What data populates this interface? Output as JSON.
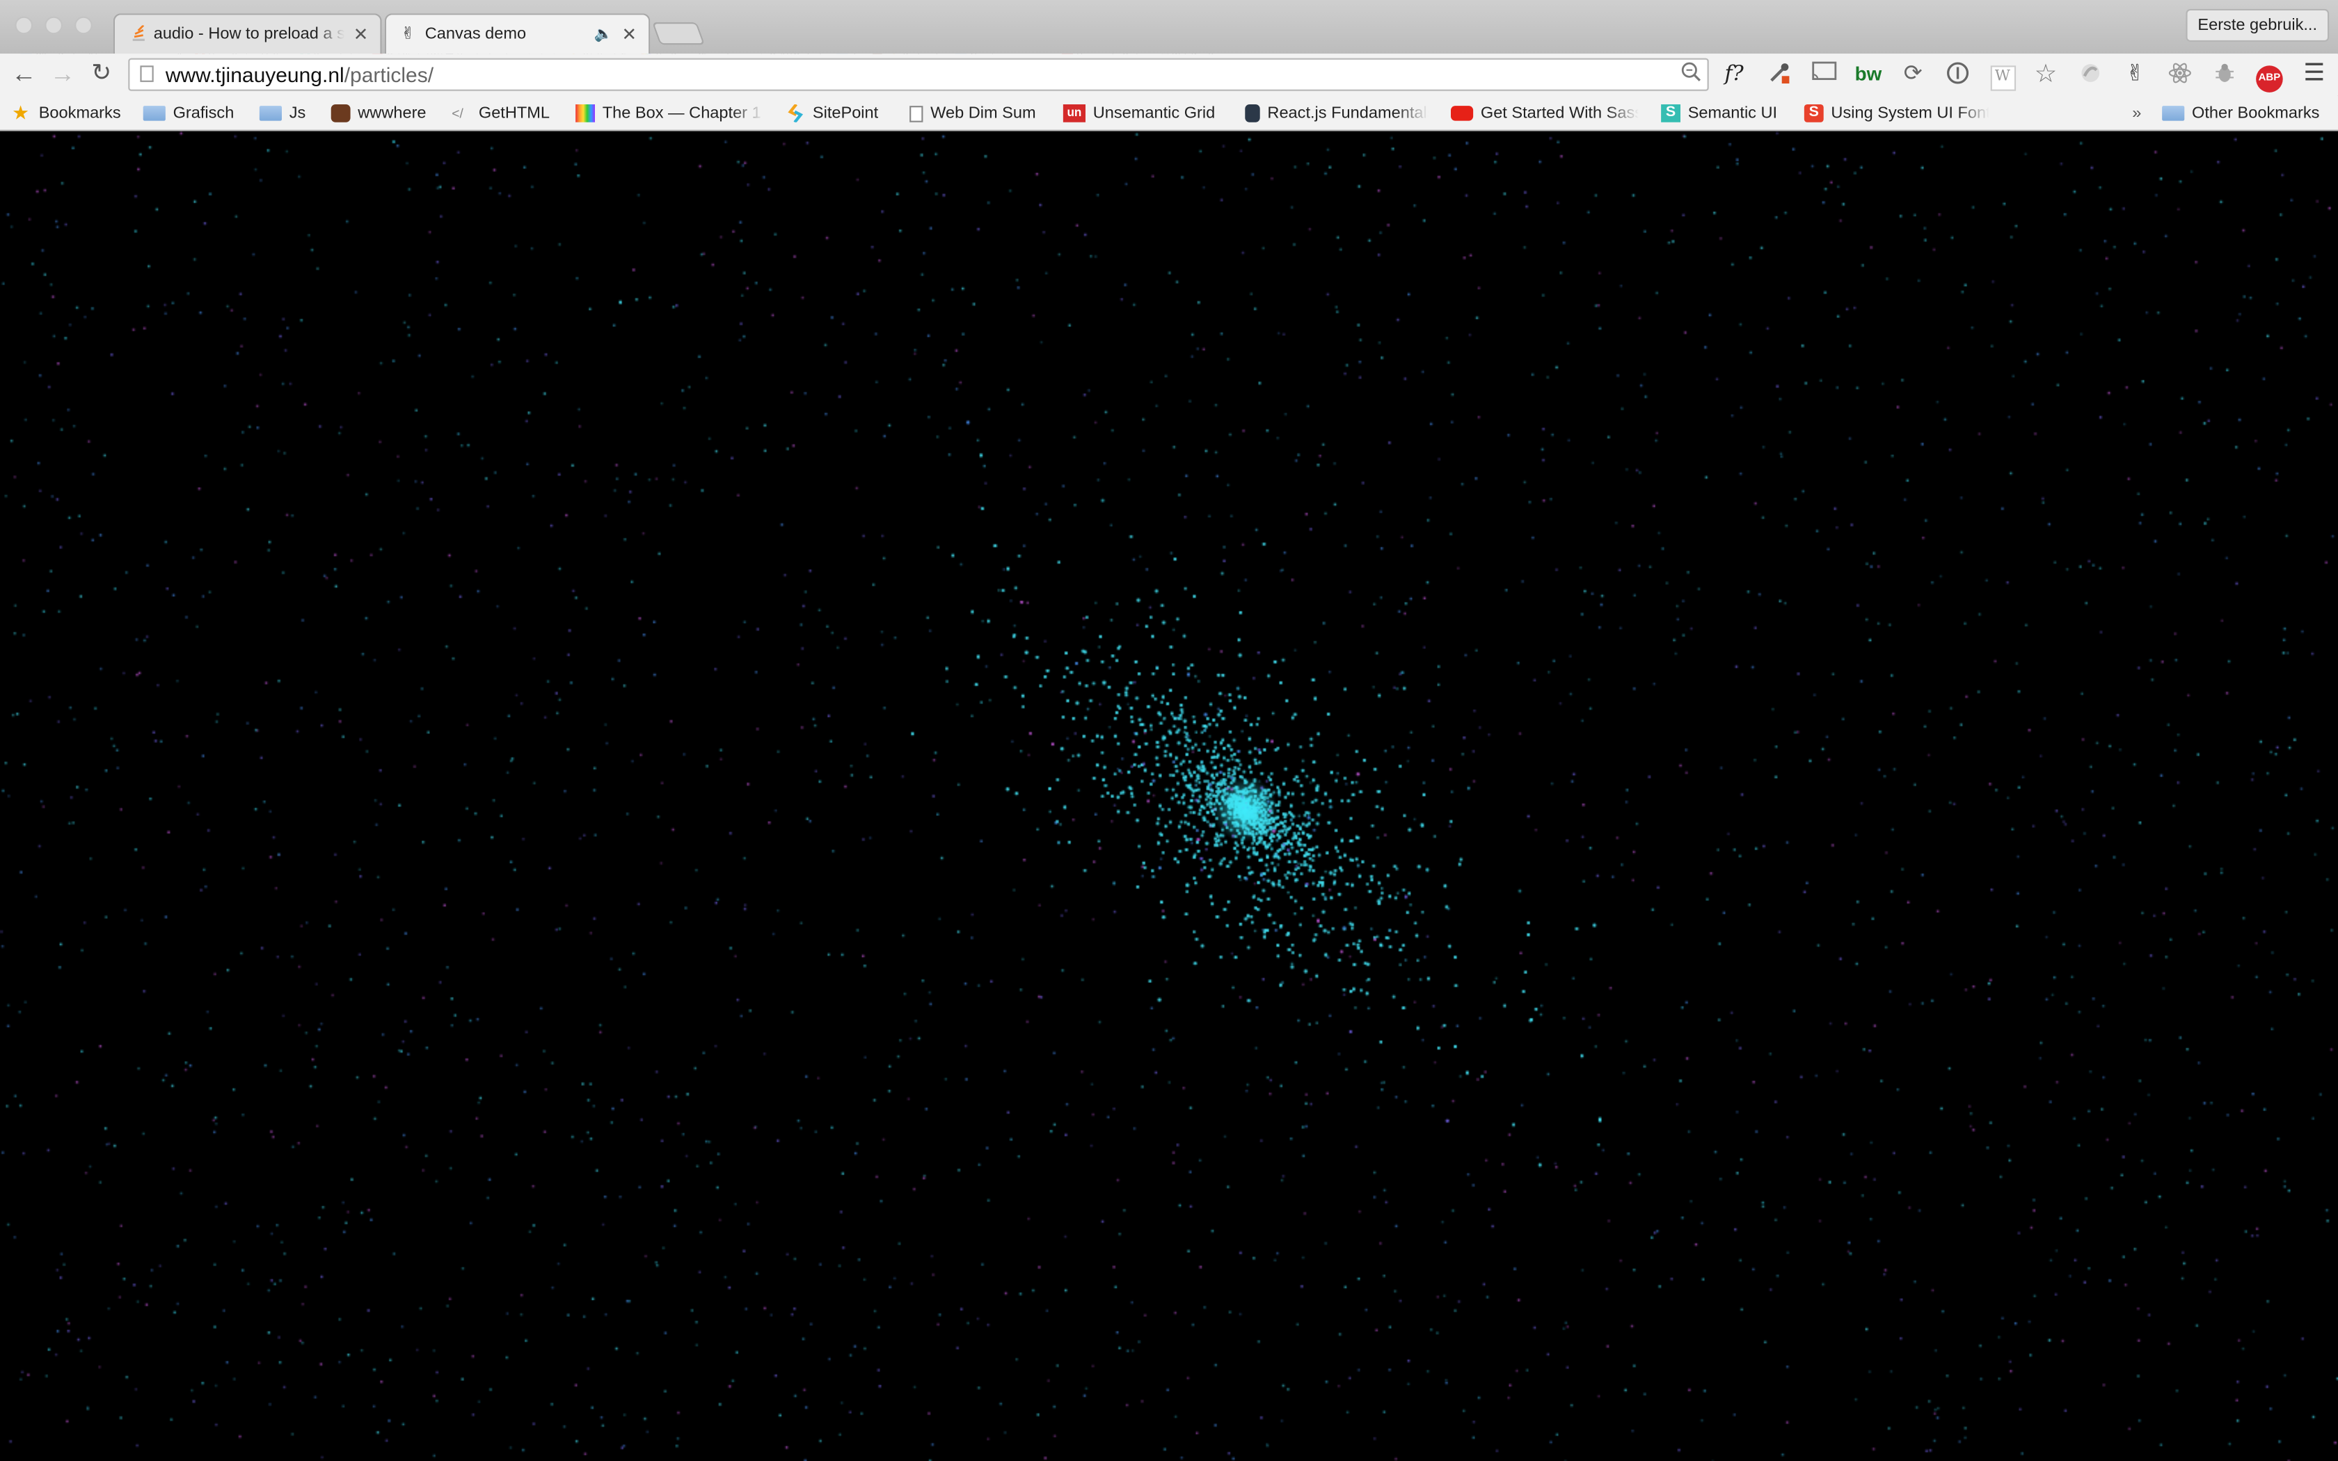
{
  "window": {
    "profile_label": "Eerste gebruik...",
    "tabs": [
      {
        "title": "audio - How to preload a sound",
        "favicon": "stackoverflow-icon",
        "active": false
      },
      {
        "title": "Canvas demo",
        "favicon": "peace-hand-icon",
        "active": true,
        "audio_playing": true
      }
    ]
  },
  "toolbar": {
    "url_host": "www.tjinauyeung.nl",
    "url_path": "/particles/",
    "extensions": [
      "font-finder-icon",
      "eyedropper-icon",
      "cast-icon",
      "builtwith-icon",
      "sync-icon",
      "info-icon",
      "wikipedia-icon",
      "star-icon",
      "swirl-icon",
      "peace-hand-icon",
      "react-devtools-icon",
      "bug-icon",
      "adblock-plus-icon",
      "menu-icon"
    ],
    "ext_labels": {
      "font_finder": "f?",
      "builtwith": "bw",
      "wikipedia": "W",
      "adblock": "ABP"
    }
  },
  "bookmarks": {
    "items": [
      {
        "label": "Bookmarks",
        "icon": "star-icon"
      },
      {
        "label": "Grafisch",
        "icon": "folder-icon"
      },
      {
        "label": "Js",
        "icon": "folder-icon"
      },
      {
        "label": "wwwhere",
        "icon": "owl-icon"
      },
      {
        "label": "GetHTML",
        "icon": "code-icon"
      },
      {
        "label": "The Box — Chapter 1",
        "icon": "rainbow-icon"
      },
      {
        "label": "SitePoint",
        "icon": "sitepoint-icon"
      },
      {
        "label": "Web Dim Sum",
        "icon": "page-icon"
      },
      {
        "label": "Unsemantic Grid",
        "icon": "unsemantic-icon"
      },
      {
        "label": "React.js Fundamentals",
        "icon": "egghead-icon"
      },
      {
        "label": "Get Started With Sass",
        "icon": "youtube-icon"
      },
      {
        "label": "Semantic UI",
        "icon": "semantic-icon"
      },
      {
        "label": "Using System UI Fonts",
        "icon": "smashing-icon"
      }
    ],
    "overflow_label": "»",
    "other_label": "Other Bookmarks"
  },
  "canvas": {
    "background": "#000000",
    "particle_colors": [
      "#3fd6e6",
      "#2fb8c9",
      "#6a5bd6",
      "#b04fc4",
      "#2a8fb0",
      "#3f7fd6"
    ],
    "cluster_color": "#3ff0ff"
  }
}
